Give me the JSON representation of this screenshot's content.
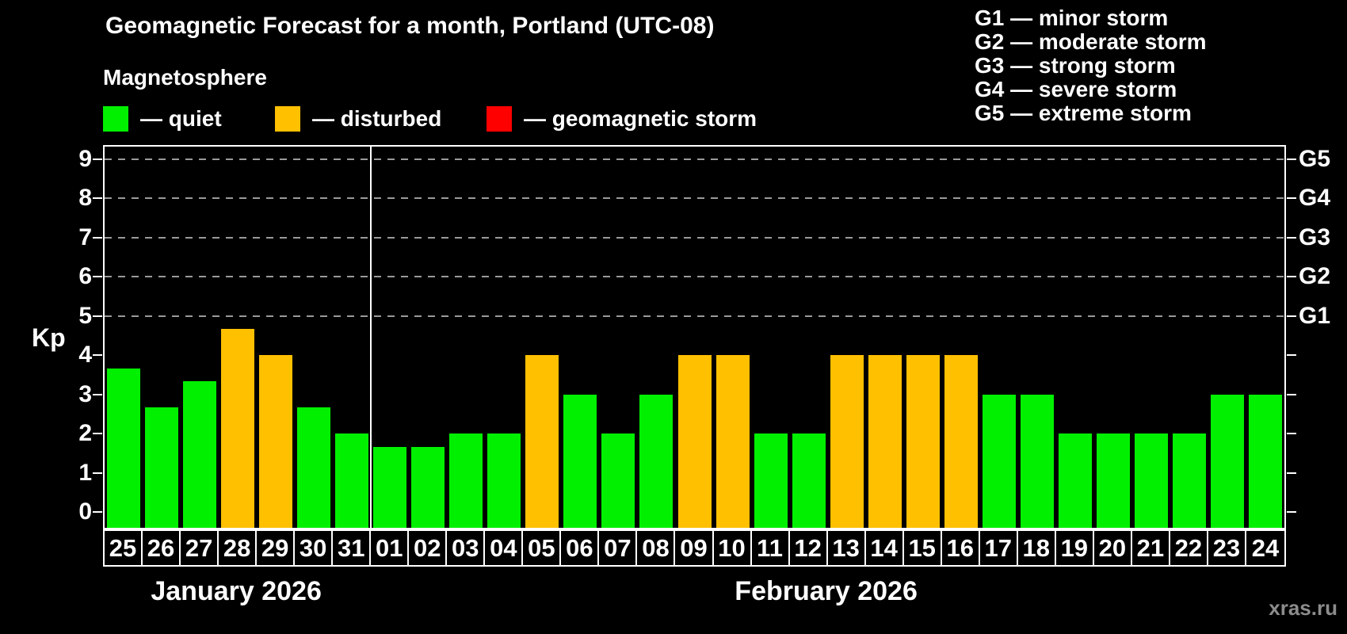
{
  "title": "Geomagnetic Forecast for a month, Portland (UTC-08)",
  "subtitle": "Magnetosphere",
  "legend": {
    "items": [
      {
        "key": "quiet",
        "label": "— quiet",
        "color": "#00f000",
        "x": 130
      },
      {
        "key": "disturbed",
        "label": "— disturbed",
        "color": "#ffc000",
        "x": 347
      },
      {
        "key": "storm",
        "label": "— geomagnetic storm",
        "color": "#ff0000",
        "x": 614
      }
    ]
  },
  "g_legend": {
    "lines": [
      "G1 — minor storm",
      "G2 — moderate storm",
      "G3 — strong storm",
      "G4 — severe storm",
      "G5 — extreme storm"
    ]
  },
  "watermark": "xras.ru",
  "chart_data": {
    "type": "bar",
    "title": "Geomagnetic Forecast for a month, Portland (UTC-08)",
    "ylabel": "Kp",
    "ylim": [
      0,
      9
    ],
    "y_ticks": [
      "0",
      "1",
      "2",
      "3",
      "4",
      "5",
      "6",
      "7",
      "8",
      "9"
    ],
    "right_axis_labels": [
      {
        "kp": 5,
        "label": "G1"
      },
      {
        "kp": 6,
        "label": "G2"
      },
      {
        "kp": 7,
        "label": "G3"
      },
      {
        "kp": 8,
        "label": "G4"
      },
      {
        "kp": 9,
        "label": "G5"
      }
    ],
    "gridlines_at": [
      5,
      6,
      7,
      8,
      9
    ],
    "legend_position": "top-left",
    "grid": "dashed-horizontal",
    "categories": [
      "25",
      "26",
      "27",
      "28",
      "29",
      "30",
      "31",
      "01",
      "02",
      "03",
      "04",
      "05",
      "06",
      "07",
      "08",
      "09",
      "10",
      "11",
      "12",
      "13",
      "14",
      "15",
      "16",
      "17",
      "18",
      "19",
      "20",
      "21",
      "22",
      "23",
      "24"
    ],
    "values": [
      3.67,
      2.67,
      3.33,
      4.67,
      4,
      2.67,
      2,
      1.67,
      1.67,
      2,
      2,
      4,
      3,
      2,
      3,
      4,
      4,
      2,
      2,
      4,
      4,
      4,
      4,
      3,
      3,
      2,
      2,
      2,
      2,
      3,
      3
    ],
    "statuses": [
      "quiet",
      "quiet",
      "quiet",
      "disturbed",
      "disturbed",
      "quiet",
      "quiet",
      "quiet",
      "quiet",
      "quiet",
      "quiet",
      "disturbed",
      "quiet",
      "quiet",
      "quiet",
      "disturbed",
      "disturbed",
      "quiet",
      "quiet",
      "disturbed",
      "disturbed",
      "disturbed",
      "disturbed",
      "quiet",
      "quiet",
      "quiet",
      "quiet",
      "quiet",
      "quiet",
      "quiet",
      "quiet"
    ],
    "months": [
      {
        "label": "January 2026",
        "days": 7
      },
      {
        "label": "February 2026",
        "days": 24
      }
    ]
  }
}
